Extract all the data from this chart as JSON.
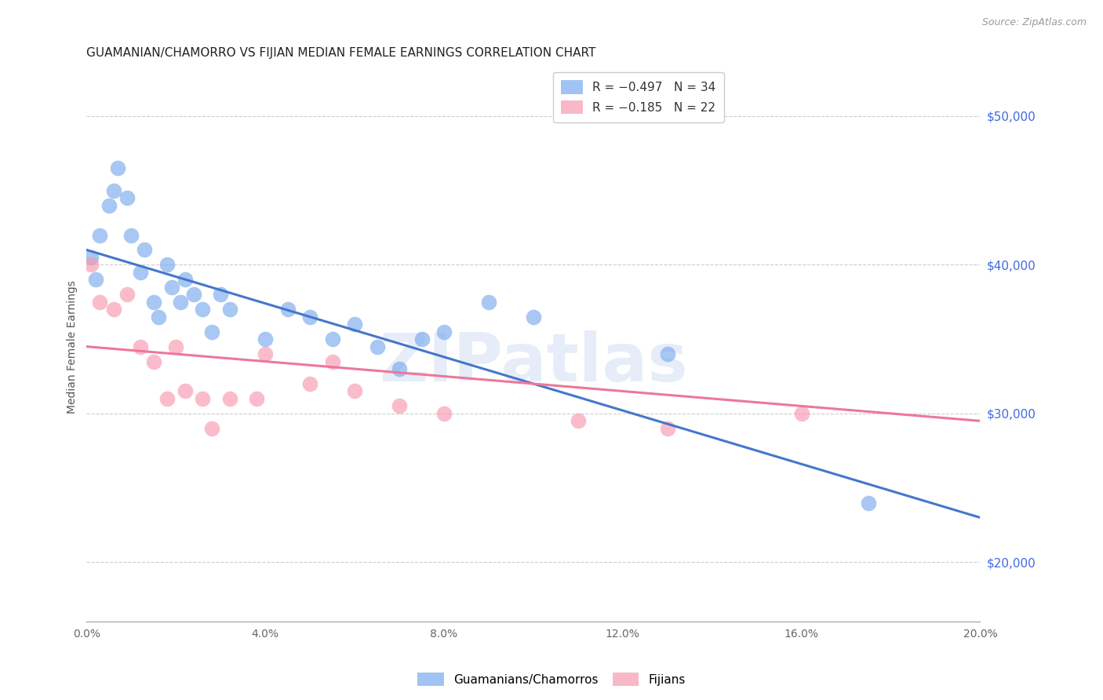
{
  "title": "GUAMANIAN/CHAMORRO VS FIJIAN MEDIAN FEMALE EARNINGS CORRELATION CHART",
  "source": "Source: ZipAtlas.com",
  "ylabel": "Median Female Earnings",
  "right_ytick_labels": [
    "$50,000",
    "$40,000",
    "$30,000",
    "$20,000"
  ],
  "right_ytick_values": [
    50000,
    40000,
    30000,
    20000
  ],
  "legend_line1": "R = −0.497   N = 34",
  "legend_line2": "R = −0.185   N = 22",
  "guamanian_color": "#7aaaee",
  "fijian_color": "#f899b0",
  "guamanian_line_color": "#4477cc",
  "fijian_line_color": "#ee7799",
  "background_color": "#ffffff",
  "watermark": "ZIPatlas",
  "guamanian_x": [
    0.001,
    0.002,
    0.003,
    0.005,
    0.006,
    0.007,
    0.009,
    0.01,
    0.012,
    0.013,
    0.015,
    0.016,
    0.018,
    0.019,
    0.021,
    0.022,
    0.024,
    0.026,
    0.028,
    0.03,
    0.032,
    0.04,
    0.045,
    0.05,
    0.055,
    0.06,
    0.065,
    0.07,
    0.075,
    0.08,
    0.09,
    0.1,
    0.13,
    0.175
  ],
  "guamanian_y": [
    40500,
    39000,
    42000,
    44000,
    45000,
    46500,
    44500,
    42000,
    39500,
    41000,
    37500,
    36500,
    40000,
    38500,
    37500,
    39000,
    38000,
    37000,
    35500,
    38000,
    37000,
    35000,
    37000,
    36500,
    35000,
    36000,
    34500,
    33000,
    35000,
    35500,
    37500,
    36500,
    34000,
    24000
  ],
  "fijian_x": [
    0.001,
    0.003,
    0.006,
    0.009,
    0.012,
    0.015,
    0.018,
    0.02,
    0.022,
    0.026,
    0.028,
    0.032,
    0.038,
    0.04,
    0.05,
    0.055,
    0.06,
    0.07,
    0.08,
    0.11,
    0.13,
    0.16
  ],
  "fijian_y": [
    40000,
    37500,
    37000,
    38000,
    34500,
    33500,
    31000,
    34500,
    31500,
    31000,
    29000,
    31000,
    31000,
    34000,
    32000,
    33500,
    31500,
    30500,
    30000,
    29500,
    29000,
    30000
  ],
  "blue_line_x0": 0.0,
  "blue_line_y0": 41000,
  "blue_line_x1": 0.2,
  "blue_line_y1": 23000,
  "pink_line_x0": 0.0,
  "pink_line_y0": 34500,
  "pink_line_x1": 0.2,
  "pink_line_y1": 29500,
  "xlim": [
    0.0,
    0.2
  ],
  "ylim": [
    16000,
    53000
  ],
  "xticks": [
    0.0,
    0.04,
    0.08,
    0.12,
    0.16,
    0.2
  ],
  "xticklabels": [
    "0.0%",
    "4.0%",
    "8.0%",
    "12.0%",
    "16.0%",
    "20.0%"
  ],
  "title_fontsize": 11,
  "axis_label_fontsize": 10,
  "tick_fontsize": 10,
  "legend_fontsize": 11,
  "source_fontsize": 9
}
